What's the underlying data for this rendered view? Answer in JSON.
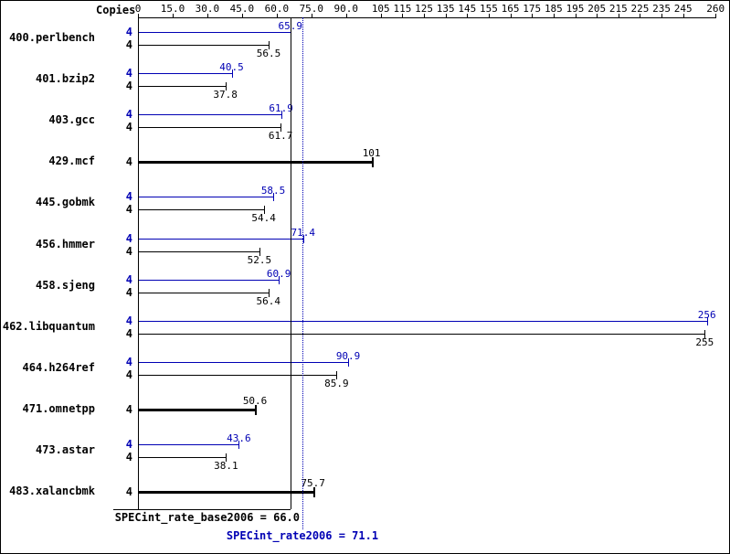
{
  "chart_data": {
    "type": "bar",
    "orientation": "horizontal",
    "copies_header": "Copies",
    "x_axis": {
      "min": 0,
      "max": 260,
      "scale_break": 105,
      "ticks": [
        {
          "v": 0,
          "label": "0"
        },
        {
          "v": 15,
          "label": "15.0"
        },
        {
          "v": 30,
          "label": "30.0"
        },
        {
          "v": 45,
          "label": "45.0"
        },
        {
          "v": 60,
          "label": "60.0"
        },
        {
          "v": 75,
          "label": "75.0"
        },
        {
          "v": 90,
          "label": "90.0"
        },
        {
          "v": 105,
          "label": "105"
        },
        {
          "v": 115,
          "label": "115"
        },
        {
          "v": 125,
          "label": "125"
        },
        {
          "v": 135,
          "label": "135"
        },
        {
          "v": 145,
          "label": "145"
        },
        {
          "v": 155,
          "label": "155"
        },
        {
          "v": 165,
          "label": "165"
        },
        {
          "v": 175,
          "label": "175"
        },
        {
          "v": 185,
          "label": "185"
        },
        {
          "v": 195,
          "label": "195"
        },
        {
          "v": 205,
          "label": "205"
        },
        {
          "v": 215,
          "label": "215"
        },
        {
          "v": 225,
          "label": "225"
        },
        {
          "v": 235,
          "label": "235"
        },
        {
          "v": 245,
          "label": "245"
        },
        {
          "v": 260,
          "label": "260"
        }
      ]
    },
    "rows": [
      {
        "name": "400.perlbench",
        "copies": "4",
        "peak": {
          "value": 65.9,
          "label": "65.9"
        },
        "base": {
          "value": 56.5,
          "label": "56.5"
        }
      },
      {
        "name": "401.bzip2",
        "copies": "4",
        "peak": {
          "value": 40.5,
          "label": "40.5"
        },
        "base": {
          "value": 37.8,
          "label": "37.8"
        }
      },
      {
        "name": "403.gcc",
        "copies": "4",
        "peak": {
          "value": 61.9,
          "label": "61.9"
        },
        "base": {
          "value": 61.7,
          "label": "61.7"
        }
      },
      {
        "name": "429.mcf",
        "copies": "4",
        "single": {
          "value": 101,
          "label": "101"
        }
      },
      {
        "name": "445.gobmk",
        "copies": "4",
        "peak": {
          "value": 58.5,
          "label": "58.5"
        },
        "base": {
          "value": 54.4,
          "label": "54.4"
        }
      },
      {
        "name": "456.hmmer",
        "copies": "4",
        "peak": {
          "value": 71.4,
          "label": "71.4"
        },
        "base": {
          "value": 52.5,
          "label": "52.5"
        }
      },
      {
        "name": "458.sjeng",
        "copies": "4",
        "peak": {
          "value": 60.9,
          "label": "60.9"
        },
        "base": {
          "value": 56.4,
          "label": "56.4"
        }
      },
      {
        "name": "462.libquantum",
        "copies": "4",
        "peak": {
          "value": 256,
          "label": "256"
        },
        "base": {
          "value": 255,
          "label": "255"
        }
      },
      {
        "name": "464.h264ref",
        "copies": "4",
        "peak": {
          "value": 90.9,
          "label": "90.9"
        },
        "base": {
          "value": 85.9,
          "label": "85.9"
        }
      },
      {
        "name": "471.omnetpp",
        "copies": "4",
        "single": {
          "value": 50.6,
          "label": "50.6"
        }
      },
      {
        "name": "473.astar",
        "copies": "4",
        "peak": {
          "value": 43.6,
          "label": "43.6"
        },
        "base": {
          "value": 38.1,
          "label": "38.1"
        }
      },
      {
        "name": "483.xalancbmk",
        "copies": "4",
        "single": {
          "value": 75.7,
          "label": "75.7"
        }
      }
    ],
    "means": {
      "base": {
        "value": 66.0,
        "label": "SPECint_rate_base2006 = 66.0"
      },
      "peak": {
        "value": 71.1,
        "label": "SPECint_rate2006 = 71.1"
      }
    },
    "colors": {
      "peak": "#0000b4",
      "base": "#000000",
      "background": "#ffffff",
      "border": "#000000"
    }
  }
}
